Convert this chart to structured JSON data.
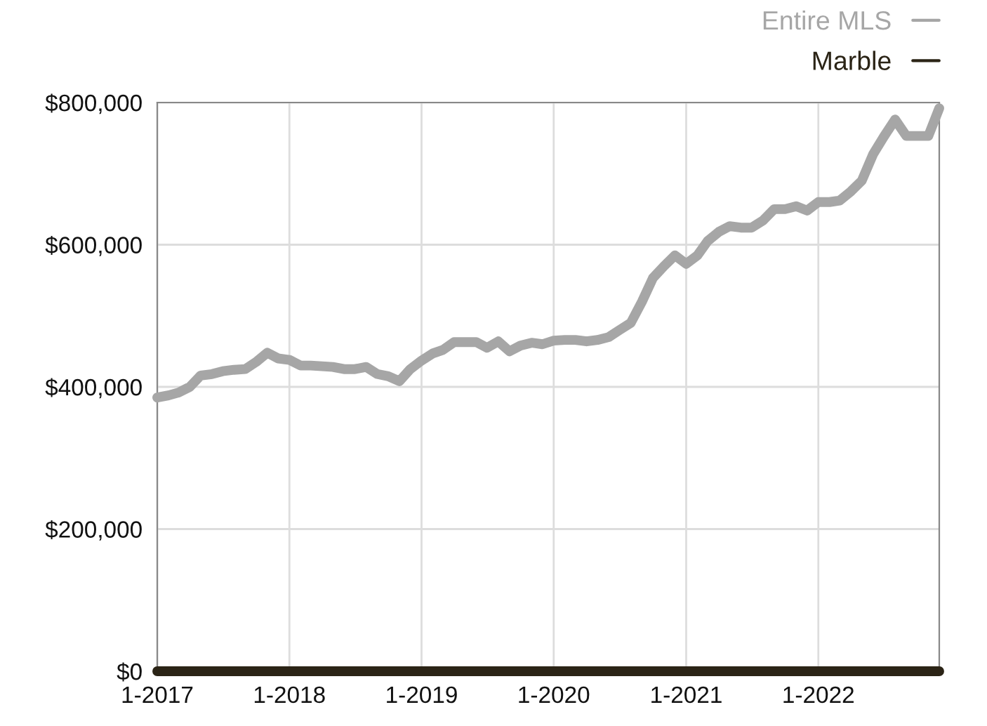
{
  "chart_data": {
    "type": "line",
    "x": [
      "2017-01",
      "2017-02",
      "2017-03",
      "2017-04",
      "2017-05",
      "2017-06",
      "2017-07",
      "2017-08",
      "2017-09",
      "2017-10",
      "2017-11",
      "2017-12",
      "2018-01",
      "2018-02",
      "2018-03",
      "2018-04",
      "2018-05",
      "2018-06",
      "2018-07",
      "2018-08",
      "2018-09",
      "2018-10",
      "2018-11",
      "2018-12",
      "2019-01",
      "2019-02",
      "2019-03",
      "2019-04",
      "2019-05",
      "2019-06",
      "2019-07",
      "2019-08",
      "2019-09",
      "2019-10",
      "2019-11",
      "2019-12",
      "2020-01",
      "2020-02",
      "2020-03",
      "2020-04",
      "2020-05",
      "2020-06",
      "2020-07",
      "2020-08",
      "2020-09",
      "2020-10",
      "2020-11",
      "2020-12",
      "2021-01",
      "2021-02",
      "2021-03",
      "2021-04",
      "2021-05",
      "2021-06",
      "2021-07",
      "2021-08",
      "2021-09",
      "2021-10",
      "2021-11",
      "2021-12",
      "2022-01",
      "2022-02",
      "2022-03",
      "2022-04",
      "2022-05",
      "2022-06",
      "2022-07",
      "2022-08",
      "2022-09",
      "2022-10",
      "2022-11",
      "2022-12"
    ],
    "series": [
      {
        "name": "Entire MLS",
        "color": "#a6a6a6",
        "values": [
          385000,
          388000,
          392000,
          400000,
          416000,
          418000,
          422000,
          424000,
          425000,
          435000,
          448000,
          440000,
          438000,
          430000,
          430000,
          429000,
          428000,
          425000,
          425000,
          428000,
          418000,
          415000,
          408000,
          425000,
          437000,
          447000,
          452000,
          463000,
          463000,
          463000,
          455000,
          464000,
          450000,
          458000,
          462000,
          460000,
          465000,
          466000,
          466000,
          464000,
          466000,
          470000,
          480000,
          490000,
          520000,
          553000,
          570000,
          585000,
          573000,
          585000,
          605000,
          618000,
          626000,
          624000,
          624000,
          634000,
          650000,
          650000,
          654000,
          648000,
          660000,
          660000,
          662000,
          675000,
          690000,
          727000,
          752000,
          776000,
          753000,
          753000,
          753000,
          792000
        ]
      },
      {
        "name": "Marble",
        "color": "#2b2416",
        "values": [
          0,
          0,
          0,
          0,
          0,
          0,
          0,
          0,
          0,
          0,
          0,
          0,
          0,
          0,
          0,
          0,
          0,
          0,
          0,
          0,
          0,
          0,
          0,
          0,
          0,
          0,
          0,
          0,
          0,
          0,
          0,
          0,
          0,
          0,
          0,
          0,
          0,
          0,
          0,
          0,
          0,
          0,
          0,
          0,
          0,
          0,
          0,
          0,
          0,
          0,
          0,
          0,
          0,
          0,
          0,
          0,
          0,
          0,
          0,
          0,
          0,
          0,
          0,
          0,
          0,
          0,
          0,
          0,
          0,
          0,
          0,
          0
        ]
      }
    ],
    "xlim": [
      "2017-01",
      "2022-12"
    ],
    "xticks": [
      {
        "value": "2017-01",
        "label": "1-2017"
      },
      {
        "value": "2018-01",
        "label": "1-2018"
      },
      {
        "value": "2019-01",
        "label": "1-2019"
      },
      {
        "value": "2020-01",
        "label": "1-2020"
      },
      {
        "value": "2021-01",
        "label": "1-2021"
      },
      {
        "value": "2022-01",
        "label": "1-2022"
      }
    ],
    "ylim": [
      0,
      800000
    ],
    "yticks": [
      {
        "value": 0,
        "label": "$0"
      },
      {
        "value": 200000,
        "label": "$200,000"
      },
      {
        "value": 400000,
        "label": "$400,000"
      },
      {
        "value": 600000,
        "label": "$600,000"
      },
      {
        "value": 800000,
        "label": "$800,000"
      }
    ],
    "grid": true,
    "legend": "top right",
    "marker": "none",
    "line_style": "solid"
  }
}
